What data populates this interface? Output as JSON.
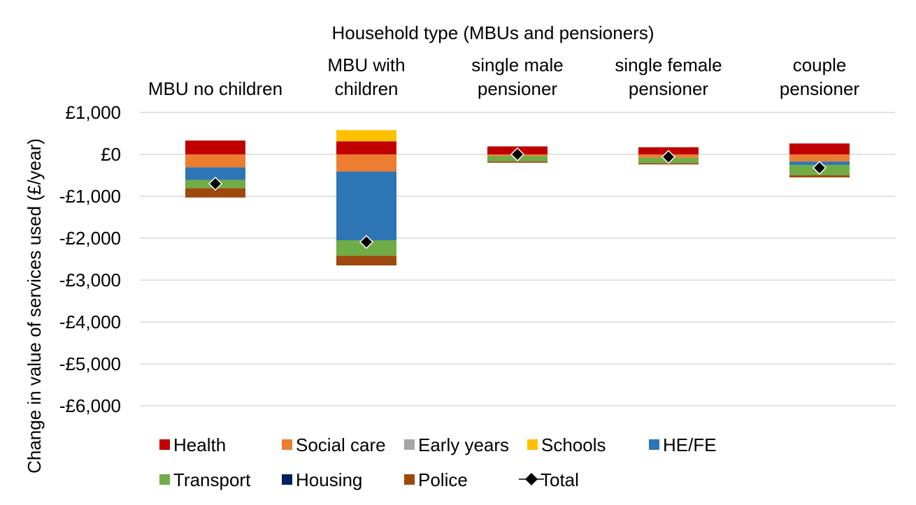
{
  "chart_data": {
    "type": "bar",
    "stacked": true,
    "title": "Household type (MBUs and pensioners)",
    "xlabel": "",
    "ylabel": "Change in value of services used (£/year)",
    "ylim": [
      -6000,
      1000
    ],
    "yticks": [
      1000,
      0,
      -1000,
      -2000,
      -3000,
      -4000,
      -5000,
      -6000
    ],
    "ytick_labels": [
      "£1,000",
      "£0",
      "-£1,000",
      "-£2,000",
      "-£3,000",
      "-£4,000",
      "-£5,000",
      "-£6,000"
    ],
    "grid": true,
    "legend_position": "bottom",
    "categories": [
      [
        "MBU no children"
      ],
      [
        "MBU with",
        "children"
      ],
      [
        "single male",
        "pensioner"
      ],
      [
        "single female",
        "pensioner"
      ],
      [
        "couple",
        "pensioner"
      ]
    ],
    "series": [
      {
        "name": "Health",
        "color": "#c00000",
        "values": [
          330,
          310,
          190,
          170,
          260
        ]
      },
      {
        "name": "Social care",
        "color": "#ed7d31",
        "values": [
          -310,
          -410,
          -40,
          -80,
          -170
        ]
      },
      {
        "name": "Early years",
        "color": "#a5a5a5",
        "values": [
          0,
          0,
          0,
          0,
          0
        ]
      },
      {
        "name": "Schools",
        "color": "#ffc000",
        "values": [
          0,
          270,
          0,
          0,
          0
        ]
      },
      {
        "name": "HE/FE",
        "color": "#2e75b6",
        "values": [
          -300,
          -1640,
          0,
          0,
          -80
        ]
      },
      {
        "name": "Transport",
        "color": "#70ad47",
        "values": [
          -200,
          -370,
          -130,
          -130,
          -250
        ]
      },
      {
        "name": "Housing",
        "color": "#002060",
        "values": [
          0,
          0,
          0,
          0,
          0
        ]
      },
      {
        "name": "Police",
        "color": "#9e480e",
        "values": [
          -220,
          -230,
          -30,
          -30,
          -50
        ]
      }
    ],
    "total": {
      "name": "Total",
      "marker": "diamond",
      "color": "#000000",
      "values": [
        -700,
        -2090,
        0,
        -60,
        -320
      ]
    },
    "legend_rows": [
      [
        "Health",
        "Social care",
        "Early years",
        "Schools",
        "HE/FE"
      ],
      [
        "Transport",
        "Housing",
        "Police",
        "Total"
      ]
    ]
  }
}
